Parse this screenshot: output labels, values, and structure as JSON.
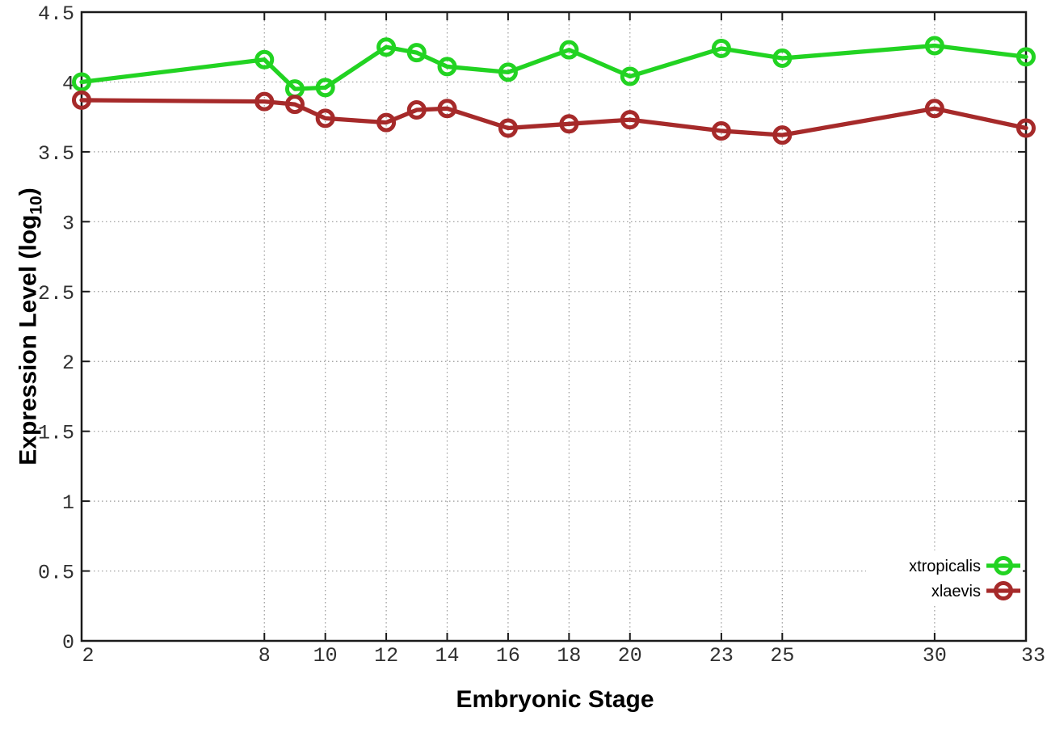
{
  "chart_data": {
    "type": "line",
    "title": "",
    "xlabel": "Embryonic Stage",
    "ylabel_parts": {
      "pre": "Expression Level (log",
      "sub": "10",
      "post": ")"
    },
    "x": [
      2,
      8,
      9,
      10,
      12,
      13,
      14,
      16,
      18,
      20,
      23,
      25,
      30,
      33
    ],
    "xlim": [
      2,
      33
    ],
    "ylim": [
      0,
      4.5
    ],
    "xtick_labels": [
      "2",
      "8",
      "10",
      "12",
      "14",
      "16",
      "18",
      "20",
      "23",
      "25",
      "30",
      "33"
    ],
    "xtick_values": [
      2,
      8,
      10,
      12,
      14,
      16,
      18,
      20,
      23,
      25,
      30,
      33
    ],
    "ytick_labels": [
      "0",
      "0.5",
      "1",
      "1.5",
      "2",
      "2.5",
      "3",
      "3.5",
      "4",
      "4.5"
    ],
    "ytick_values": [
      0,
      0.5,
      1,
      1.5,
      2,
      2.5,
      3,
      3.5,
      4,
      4.5
    ],
    "grid": true,
    "legend_position": "bottom-right",
    "series": [
      {
        "name": "xtropicalis",
        "color": "#22d322",
        "values": [
          4.0,
          4.16,
          3.95,
          3.96,
          4.25,
          4.21,
          4.11,
          4.07,
          4.23,
          4.04,
          4.24,
          4.17,
          4.26,
          4.18
        ]
      },
      {
        "name": "xlaevis",
        "color": "#a62a2a",
        "values": [
          3.87,
          3.86,
          3.84,
          3.74,
          3.71,
          3.8,
          3.81,
          3.67,
          3.7,
          3.73,
          3.65,
          3.62,
          3.81,
          3.67
        ]
      }
    ]
  },
  "style": {
    "border_color": "#1a1a1a",
    "grid_color": "#999999",
    "tick_label_color": "#303030",
    "legend_text_color": "#000000",
    "background": "#ffffff"
  }
}
